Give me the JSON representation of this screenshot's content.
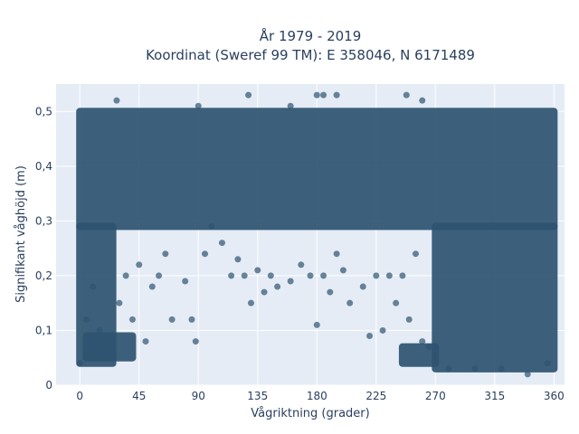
{
  "chart_data": {
    "type": "scatter",
    "title": "År 1979 - 2019",
    "subtitle": "Koordinat (Sweref 99 TM): E 358046, N 6171489",
    "xlabel": "Vågriktning (grader)",
    "ylabel": "Signifikant våghöjd (m)",
    "xlim": [
      -18,
      368
    ],
    "ylim": [
      0,
      0.55
    ],
    "x_ticks": [
      0,
      45,
      90,
      135,
      180,
      225,
      270,
      315,
      360
    ],
    "x_tick_labels": [
      "0",
      "45",
      "90",
      "135",
      "180",
      "225",
      "270",
      "315",
      "360"
    ],
    "y_ticks": [
      0,
      0.1,
      0.2,
      0.3,
      0.4,
      0.5
    ],
    "y_tick_labels": [
      "0",
      "0,1",
      "0,2",
      "0,3",
      "0,4",
      "0,5"
    ],
    "grid": true,
    "legend": "none",
    "colors": {
      "marker": "#2e5470",
      "plot_bg": "#e5ecf6",
      "grid": "#ffffff",
      "text": "#2a3f5f"
    },
    "dense_regions": [
      {
        "x": [
          0,
          360
        ],
        "y": [
          0.29,
          0.5
        ]
      },
      {
        "x": [
          0,
          25
        ],
        "y": [
          0.04,
          0.29
        ]
      },
      {
        "x": [
          5,
          40
        ],
        "y": [
          0.05,
          0.09
        ]
      },
      {
        "x": [
          270,
          360
        ],
        "y": [
          0.03,
          0.29
        ]
      },
      {
        "x": [
          245,
          270
        ],
        "y": [
          0.04,
          0.07
        ]
      }
    ],
    "points": [
      [
        0,
        0.04
      ],
      [
        5,
        0.12
      ],
      [
        10,
        0.18
      ],
      [
        15,
        0.1
      ],
      [
        20,
        0.07
      ],
      [
        25,
        0.05
      ],
      [
        30,
        0.15
      ],
      [
        35,
        0.2
      ],
      [
        40,
        0.12
      ],
      [
        45,
        0.22
      ],
      [
        50,
        0.08
      ],
      [
        55,
        0.18
      ],
      [
        60,
        0.2
      ],
      [
        65,
        0.24
      ],
      [
        70,
        0.12
      ],
      [
        80,
        0.19
      ],
      [
        85,
        0.12
      ],
      [
        88,
        0.08
      ],
      [
        95,
        0.24
      ],
      [
        100,
        0.29
      ],
      [
        108,
        0.26
      ],
      [
        115,
        0.2
      ],
      [
        120,
        0.23
      ],
      [
        125,
        0.2
      ],
      [
        130,
        0.15
      ],
      [
        135,
        0.21
      ],
      [
        140,
        0.17
      ],
      [
        145,
        0.2
      ],
      [
        150,
        0.18
      ],
      [
        160,
        0.19
      ],
      [
        168,
        0.22
      ],
      [
        175,
        0.2
      ],
      [
        180,
        0.11
      ],
      [
        185,
        0.2
      ],
      [
        190,
        0.17
      ],
      [
        195,
        0.24
      ],
      [
        200,
        0.21
      ],
      [
        205,
        0.15
      ],
      [
        215,
        0.18
      ],
      [
        220,
        0.09
      ],
      [
        225,
        0.2
      ],
      [
        230,
        0.1
      ],
      [
        235,
        0.2
      ],
      [
        240,
        0.15
      ],
      [
        245,
        0.2
      ],
      [
        250,
        0.12
      ],
      [
        255,
        0.24
      ],
      [
        260,
        0.08
      ],
      [
        265,
        0.07
      ],
      [
        28,
        0.52
      ],
      [
        128,
        0.53
      ],
      [
        180,
        0.53
      ],
      [
        185,
        0.53
      ],
      [
        195,
        0.53
      ],
      [
        248,
        0.53
      ],
      [
        260,
        0.52
      ],
      [
        90,
        0.51
      ],
      [
        160,
        0.51
      ],
      [
        280,
        0.03
      ],
      [
        300,
        0.03
      ],
      [
        320,
        0.03
      ],
      [
        340,
        0.02
      ],
      [
        355,
        0.04
      ]
    ]
  }
}
